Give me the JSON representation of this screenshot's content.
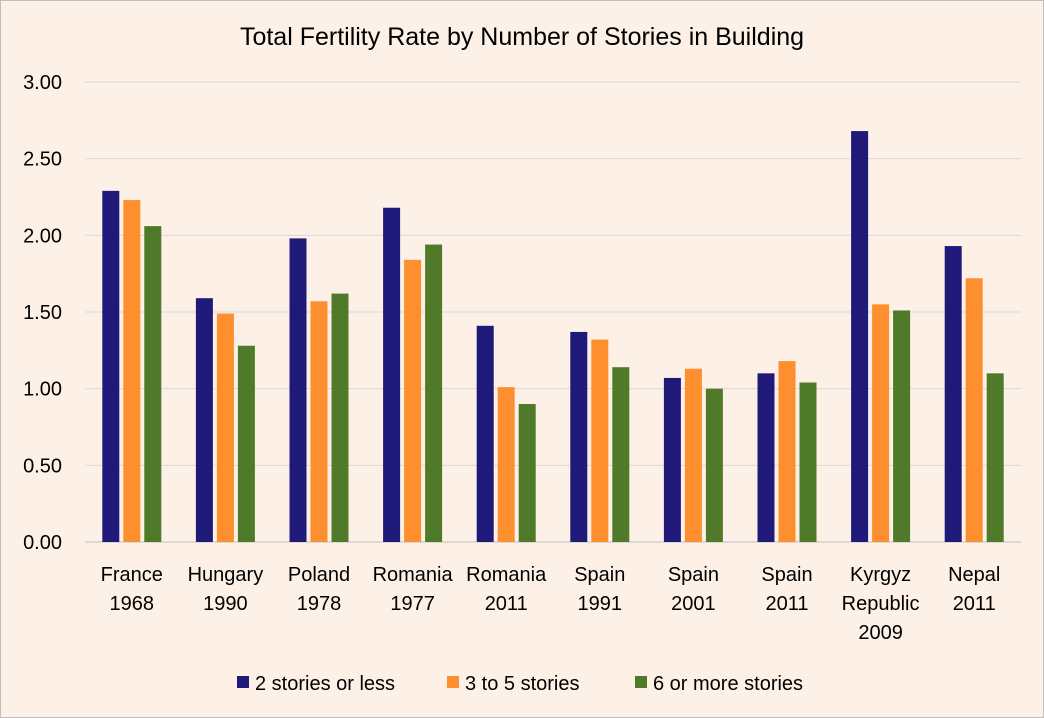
{
  "chart_data": {
    "type": "bar",
    "title": "Total Fertility Rate by Number of Stories in Building",
    "xlabel": "",
    "ylabel": "",
    "ylim": [
      0,
      3
    ],
    "y_ticks": [
      "0.00",
      "0.50",
      "1.00",
      "1.50",
      "2.00",
      "2.50",
      "3.00"
    ],
    "grid": true,
    "legend_position": "bottom",
    "categories": [
      [
        "France",
        "1968"
      ],
      [
        "Hungary",
        "1990"
      ],
      [
        "Poland",
        "1978"
      ],
      [
        "Romania",
        "1977"
      ],
      [
        "Romania",
        "2011"
      ],
      [
        "Spain",
        "1991"
      ],
      [
        "Spain",
        "2001"
      ],
      [
        "Spain",
        "2011"
      ],
      [
        "Kyrgyz",
        "Republic",
        "2009"
      ],
      [
        "Nepal",
        "2011"
      ]
    ],
    "series": [
      {
        "name": "2 stories or less",
        "color": "#1f1a7a",
        "values": [
          2.29,
          1.59,
          1.98,
          2.18,
          1.41,
          1.37,
          1.07,
          1.1,
          2.68,
          1.93
        ]
      },
      {
        "name": "3 to 5 stories",
        "color": "#fe8f2f",
        "values": [
          2.23,
          1.49,
          1.57,
          1.84,
          1.01,
          1.32,
          1.13,
          1.18,
          1.55,
          1.72
        ]
      },
      {
        "name": "6 or more stories",
        "color": "#4e7a2a",
        "values": [
          2.06,
          1.28,
          1.62,
          1.94,
          0.9,
          1.14,
          1.0,
          1.04,
          1.51,
          1.1
        ]
      }
    ]
  },
  "style": {
    "background": "#fdf0e6",
    "gridline": "#d9d9d9",
    "axis_line": "#bfbfbf"
  }
}
